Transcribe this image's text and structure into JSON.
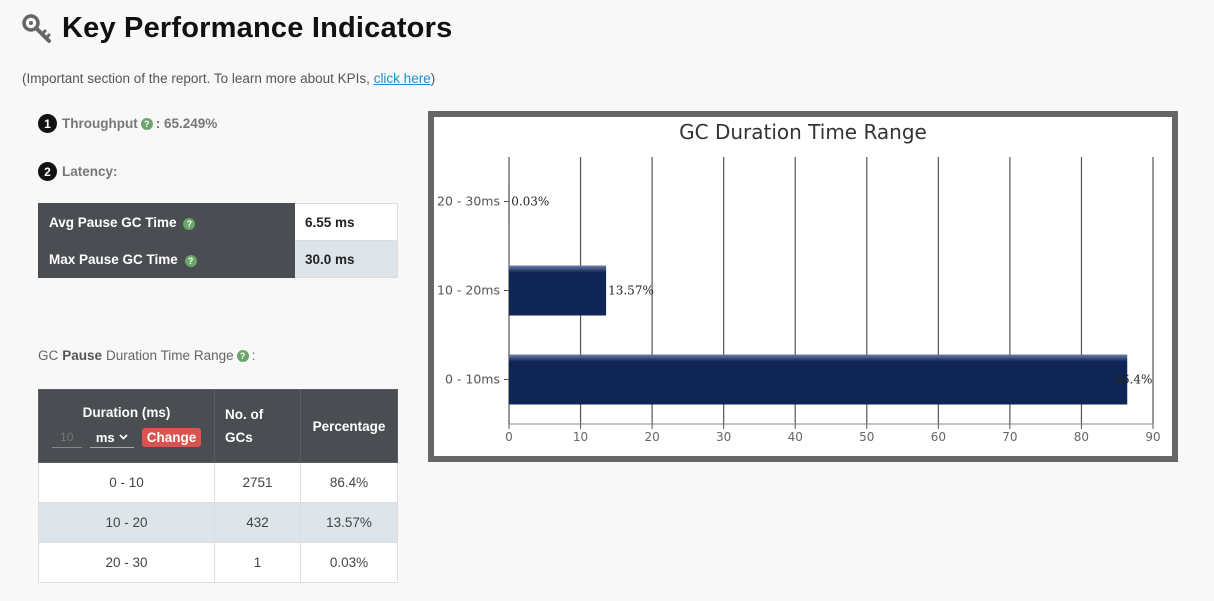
{
  "header": {
    "title": "Key Performance Indicators",
    "subtitle_prefix": "(Important section of the report. To learn more about KPIs, ",
    "subtitle_link": "click here",
    "subtitle_suffix": ")"
  },
  "throughput": {
    "badge": "1",
    "label": "Throughput",
    "value": ": 65.249%"
  },
  "latency": {
    "badge": "2",
    "label": "Latency:",
    "rows": [
      {
        "label": "Avg Pause GC Time",
        "value": "6.55 ms"
      },
      {
        "label": "Max Pause GC Time",
        "value": "30.0 ms"
      }
    ]
  },
  "range_section": {
    "label_pre": "GC",
    "label_bold": "Pause",
    "label_post": "Duration Time Range",
    "label_end": ":",
    "headers": {
      "duration": "Duration (ms)",
      "input_placeholder": "10",
      "unit": "ms",
      "change": "Change",
      "num_line1": "No. of",
      "num_line2": "GCs",
      "pct": "Percentage"
    },
    "rows": [
      {
        "range": "0 - 10",
        "count": "2751",
        "pct": "86.4%"
      },
      {
        "range": "10 - 20",
        "count": "432",
        "pct": "13.57%"
      },
      {
        "range": "20 - 30",
        "count": "1",
        "pct": "0.03%"
      }
    ]
  },
  "help_glyph": "?",
  "colors": {
    "bar": "#0f2556",
    "header_dark": "#4a4d52",
    "change_red": "#d9534f",
    "help_green": "#6aa66a",
    "link": "#1a8fd0"
  },
  "chart_data": {
    "type": "bar",
    "orientation": "horizontal",
    "title": "GC Duration Time Range",
    "categories": [
      "0 - 10ms",
      "10 - 20ms",
      "20 - 30ms"
    ],
    "values": [
      86.4,
      13.57,
      0.03
    ],
    "data_labels": [
      "86.4%",
      "13.57%",
      "0.03%"
    ],
    "xlim": [
      0,
      90
    ],
    "xticks": [
      "0",
      "10",
      "20",
      "30",
      "40",
      "50",
      "60",
      "70",
      "80",
      "90"
    ],
    "grid": true
  }
}
